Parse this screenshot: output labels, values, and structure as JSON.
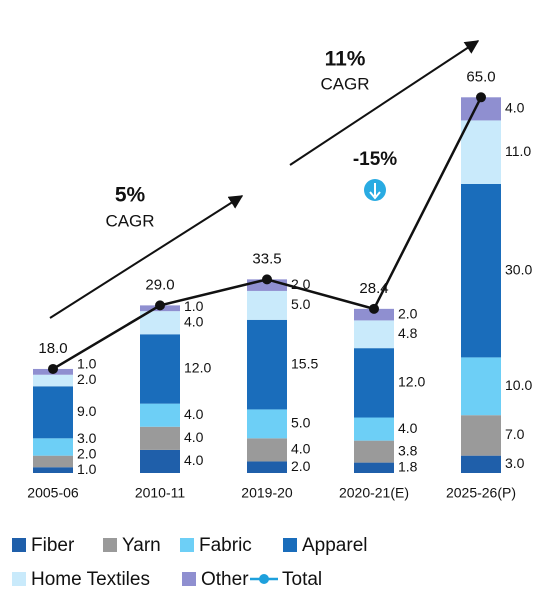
{
  "chart_data": {
    "type": "bar",
    "stacked": true,
    "categories": [
      "2005-06",
      "2010-11",
      "2019-20",
      "2020-21(E)",
      "2025-26(P)"
    ],
    "series": [
      {
        "name": "Fiber",
        "color": "#1f5faa",
        "values": [
          1,
          4,
          2,
          1.8,
          3
        ],
        "value_labels": [
          "1.0",
          "4.0",
          "2.0",
          "1.8",
          "3.0"
        ]
      },
      {
        "name": "Yarn",
        "color": "#9a9a9a",
        "values": [
          2,
          4,
          4,
          3.8,
          7
        ],
        "value_labels": [
          "2.0",
          "4.0",
          "4.0",
          "3.8",
          "7.0"
        ]
      },
      {
        "name": "Fabric",
        "color": "#6dcff6",
        "values": [
          3,
          4,
          5,
          4,
          10
        ],
        "value_labels": [
          "3.0",
          "4.0",
          "5.0",
          "4.0",
          "10.0"
        ]
      },
      {
        "name": "Apparel",
        "color": "#1a6dbb",
        "values": [
          9,
          12,
          15.5,
          12,
          30
        ],
        "value_labels": [
          "9.0",
          "12.0",
          "15.5",
          "12.0",
          "30.0"
        ]
      },
      {
        "name": "Home Textiles",
        "color": "#c9eafb",
        "values": [
          2,
          4,
          5,
          4.8,
          11
        ],
        "value_labels": [
          "2.0",
          "4.0",
          "5.0",
          "4.8",
          "11.0"
        ]
      },
      {
        "name": "Other",
        "color": "#8f8fd0",
        "values": [
          1,
          1,
          2,
          2,
          4
        ],
        "value_labels": [
          "1.0",
          "1.0",
          "2.0",
          "2.0",
          "4.0"
        ]
      }
    ],
    "total": {
      "name": "Total",
      "color": "#1ea0dc",
      "line_color": "#111111",
      "values": [
        18,
        29,
        33.5,
        28.4,
        65
      ],
      "value_labels": [
        "18.0",
        "29.0",
        "33.5",
        "28.4",
        "65.0"
      ]
    },
    "annotations": [
      "5%",
      "CAGR",
      "11%",
      "CAGR",
      "-15%"
    ]
  }
}
